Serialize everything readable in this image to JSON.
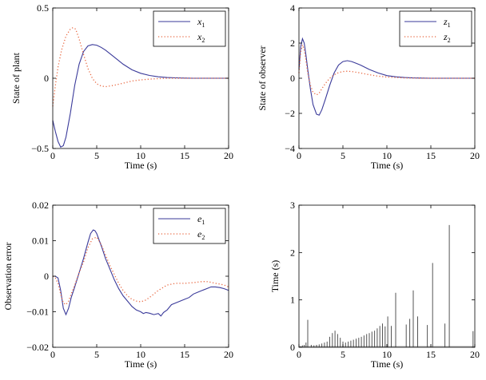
{
  "chart_data": [
    {
      "type": "line",
      "xlabel": "Time (s)",
      "ylabel": "State of plant",
      "xlim": [
        0,
        20
      ],
      "ylim": [
        -0.5,
        0.5
      ],
      "xticks": [
        0,
        5,
        10,
        15,
        20
      ],
      "yticks": [
        -0.5,
        0,
        0.5
      ],
      "ytick_labels": [
        "−0.5",
        "0",
        "0.5"
      ],
      "legend_position": "top-right",
      "series": [
        {
          "name": "x",
          "sub": "1",
          "color": "#3a3a9a",
          "style": "solid",
          "x": [
            0,
            0.3,
            0.6,
            0.9,
            1.2,
            1.5,
            2,
            2.5,
            3,
            3.5,
            4,
            4.5,
            5,
            5.5,
            6,
            7,
            8,
            9,
            10,
            11,
            12,
            13,
            14,
            15,
            16,
            17,
            18,
            19,
            20
          ],
          "y": [
            -0.3,
            -0.38,
            -0.45,
            -0.49,
            -0.48,
            -0.42,
            -0.25,
            -0.05,
            0.1,
            0.19,
            0.23,
            0.24,
            0.235,
            0.22,
            0.2,
            0.15,
            0.1,
            0.06,
            0.035,
            0.02,
            0.01,
            0.005,
            0.003,
            0.001,
            0,
            0,
            0,
            0,
            0
          ]
        },
        {
          "name": "x",
          "sub": "2",
          "color": "#e8643c",
          "style": "dotted",
          "x": [
            0,
            0.3,
            0.6,
            1,
            1.5,
            2,
            2.3,
            2.6,
            3,
            3.5,
            4,
            4.5,
            5,
            5.5,
            6,
            6.5,
            7,
            8,
            9,
            10,
            11,
            12,
            13,
            14,
            15,
            16,
            17,
            18,
            19,
            20
          ],
          "y": [
            -0.2,
            -0.05,
            0.08,
            0.2,
            0.3,
            0.35,
            0.36,
            0.35,
            0.28,
            0.17,
            0.07,
            0.0,
            -0.04,
            -0.055,
            -0.06,
            -0.055,
            -0.05,
            -0.035,
            -0.02,
            -0.012,
            -0.006,
            -0.003,
            0,
            0,
            0,
            0,
            0,
            0,
            0,
            0
          ]
        }
      ]
    },
    {
      "type": "line",
      "xlabel": "Time (s)",
      "ylabel": "State of observer",
      "xlim": [
        0,
        20
      ],
      "ylim": [
        -4,
        4
      ],
      "xticks": [
        0,
        5,
        10,
        15,
        20
      ],
      "yticks": [
        -4,
        -2,
        0,
        2,
        4
      ],
      "ytick_labels": [
        "−4",
        "−2",
        "0",
        "2",
        "4"
      ],
      "legend_position": "top-right",
      "series": [
        {
          "name": "z",
          "sub": "1",
          "color": "#3a3a9a",
          "style": "solid",
          "x": [
            0,
            0.2,
            0.4,
            0.6,
            0.8,
            1,
            1.3,
            1.6,
            2,
            2.3,
            2.6,
            3,
            3.5,
            4,
            4.5,
            5,
            5.5,
            6,
            6.5,
            7,
            8,
            9,
            10,
            11,
            12,
            13,
            14,
            15,
            16,
            17,
            18,
            19,
            20
          ],
          "y": [
            0.5,
            1.8,
            2.25,
            2.0,
            1.3,
            0.5,
            -0.6,
            -1.5,
            -2.05,
            -2.1,
            -1.8,
            -1.2,
            -0.4,
            0.3,
            0.75,
            0.95,
            1.0,
            0.95,
            0.85,
            0.75,
            0.5,
            0.3,
            0.15,
            0.08,
            0.04,
            0.02,
            0.01,
            0,
            0,
            0,
            0,
            0,
            0
          ]
        },
        {
          "name": "z",
          "sub": "2",
          "color": "#e8643c",
          "style": "dotted",
          "x": [
            0,
            0.2,
            0.4,
            0.6,
            0.8,
            1,
            1.3,
            1.6,
            2,
            2.3,
            2.6,
            3,
            3.5,
            4,
            4.5,
            5,
            5.5,
            6,
            7,
            8,
            9,
            10,
            11,
            12,
            13,
            14,
            15,
            16,
            17,
            18,
            19,
            20
          ],
          "y": [
            0.3,
            1.5,
            1.9,
            1.6,
            1.0,
            0.3,
            -0.4,
            -0.8,
            -0.95,
            -0.85,
            -0.6,
            -0.3,
            0.0,
            0.2,
            0.32,
            0.38,
            0.4,
            0.38,
            0.3,
            0.2,
            0.12,
            0.07,
            0.04,
            0.02,
            0.01,
            0,
            0,
            0,
            0,
            0,
            0,
            0
          ]
        }
      ]
    },
    {
      "type": "line",
      "xlabel": "Time (s)",
      "ylabel": "Observation error",
      "xlim": [
        0,
        20
      ],
      "ylim": [
        -0.02,
        0.02
      ],
      "xticks": [
        0,
        5,
        10,
        15,
        20
      ],
      "yticks": [
        -0.02,
        -0.01,
        0,
        0.01,
        0.02
      ],
      "ytick_labels": [
        "−0.02",
        "−0.01",
        "0",
        "0.01",
        "0.02"
      ],
      "legend_position": "top-right",
      "series": [
        {
          "name": "e",
          "sub": "1",
          "color": "#3a3a9a",
          "style": "solid",
          "x": [
            0,
            0.3,
            0.6,
            0.9,
            1.2,
            1.5,
            1.8,
            2.1,
            2.5,
            3,
            3.5,
            4,
            4.3,
            4.6,
            4.8,
            5,
            5.3,
            5.6,
            6,
            6.5,
            7,
            7.5,
            8,
            8.5,
            9,
            9.5,
            10,
            10.3,
            10.6,
            11,
            11.5,
            12,
            12.3,
            12.6,
            13,
            13.5,
            14,
            14.5,
            15,
            15.5,
            16,
            16.5,
            17,
            17.5,
            18,
            18.5,
            19,
            19.5,
            20
          ],
          "y": [
            0,
            0,
            -0.0005,
            -0.004,
            -0.009,
            -0.0108,
            -0.009,
            -0.006,
            -0.003,
            0.001,
            0.005,
            0.0095,
            0.012,
            0.013,
            0.0128,
            0.012,
            0.01,
            0.008,
            0.005,
            0.002,
            -0.001,
            -0.0035,
            -0.0055,
            -0.007,
            -0.0085,
            -0.0095,
            -0.01,
            -0.0105,
            -0.0102,
            -0.0104,
            -0.0108,
            -0.0105,
            -0.0112,
            -0.0102,
            -0.0095,
            -0.008,
            -0.0075,
            -0.007,
            -0.0065,
            -0.006,
            -0.005,
            -0.0045,
            -0.004,
            -0.0035,
            -0.003,
            -0.003,
            -0.0032,
            -0.0035,
            -0.004
          ]
        },
        {
          "name": "e",
          "sub": "2",
          "color": "#e8643c",
          "style": "dotted",
          "x": [
            0,
            0.3,
            0.6,
            0.9,
            1.2,
            1.5,
            1.8,
            2.1,
            2.5,
            3,
            3.5,
            4,
            4.5,
            5,
            5.5,
            6,
            6.5,
            7,
            7.5,
            8,
            8.5,
            9,
            9.5,
            10,
            10.5,
            11,
            12,
            13,
            14,
            15,
            16,
            17,
            17.5,
            18,
            18.5,
            19,
            19.5,
            20
          ],
          "y": [
            0,
            -0.0005,
            -0.002,
            -0.005,
            -0.0075,
            -0.008,
            -0.007,
            -0.005,
            -0.0025,
            0.001,
            0.004,
            0.008,
            0.0105,
            0.011,
            0.009,
            0.006,
            0.003,
            0.0005,
            -0.002,
            -0.004,
            -0.0055,
            -0.0065,
            -0.007,
            -0.0072,
            -0.0068,
            -0.006,
            -0.004,
            -0.0025,
            -0.002,
            -0.002,
            -0.0018,
            -0.0015,
            -0.0015,
            -0.0017,
            -0.002,
            -0.0022,
            -0.0025,
            -0.003
          ]
        }
      ]
    },
    {
      "type": "bar",
      "xlabel": "Time (s)",
      "ylabel": "Time (s)",
      "xlim": [
        0,
        20
      ],
      "ylim": [
        0,
        3
      ],
      "xticks": [
        0,
        5,
        10,
        15,
        20
      ],
      "yticks": [
        0,
        1,
        2,
        3
      ],
      "ytick_labels": [
        "0",
        "1",
        "2",
        "3"
      ],
      "color": "#555555",
      "x": [
        0.2,
        0.4,
        0.6,
        0.8,
        1.0,
        1.4,
        1.7,
        2.0,
        2.3,
        2.6,
        2.9,
        3.2,
        3.5,
        3.8,
        4.1,
        4.4,
        4.7,
        5.0,
        5.3,
        5.6,
        5.9,
        6.2,
        6.5,
        6.8,
        7.1,
        7.4,
        7.7,
        8.0,
        8.3,
        8.6,
        8.9,
        9.2,
        9.5,
        9.8,
        10.1,
        10.5,
        11.0,
        12.2,
        12.6,
        13.0,
        13.5,
        14.6,
        15.2,
        16.6,
        17.1,
        19.8
      ],
      "values": [
        0.02,
        0.04,
        0.05,
        0.1,
        0.58,
        0.05,
        0.04,
        0.05,
        0.06,
        0.08,
        0.1,
        0.12,
        0.22,
        0.3,
        0.35,
        0.28,
        0.2,
        0.12,
        0.1,
        0.12,
        0.14,
        0.16,
        0.18,
        0.2,
        0.22,
        0.25,
        0.28,
        0.3,
        0.33,
        0.35,
        0.4,
        0.45,
        0.5,
        0.44,
        0.65,
        0.45,
        1.15,
        0.48,
        0.6,
        1.2,
        0.65,
        0.47,
        1.78,
        0.5,
        2.58,
        0.34
      ]
    }
  ]
}
